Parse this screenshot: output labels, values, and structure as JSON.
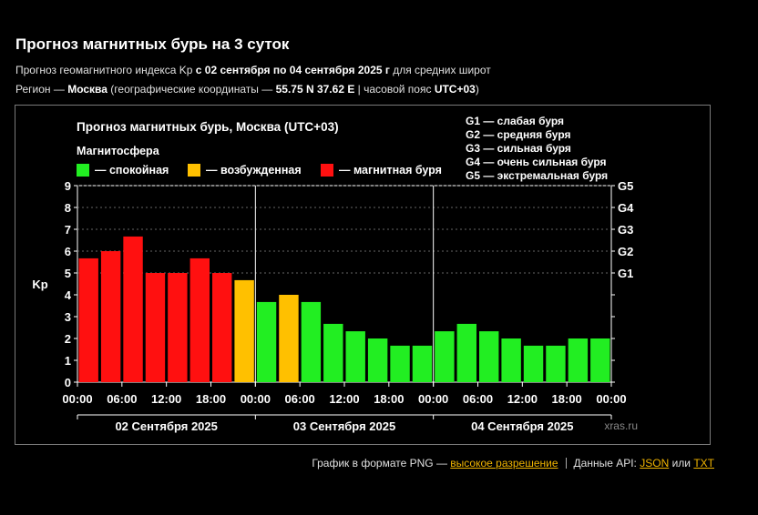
{
  "header": {
    "title": "Прогноз магнитных бурь на 3 суток",
    "line1_prefix": "Прогноз геомагнитного индекса Kp ",
    "line1_bold": "с 02 сентября по 04 сентября 2025 г",
    "line1_suffix": " для средних широт",
    "line2_prefix": "Регион — ",
    "line2_region": "Москва",
    "line2_mid": " (географические координаты — ",
    "line2_coords": "55.75 N 37.62 E",
    "line2_tz_prefix": " | часовой пояс ",
    "line2_tz": "UTC+03",
    "line2_suffix": ")"
  },
  "chart_data": {
    "type": "bar",
    "title": "Прогноз магнитных бурь, Москва (UTC+03)",
    "legend_title": "Магнитосфера",
    "legend": [
      {
        "label": "— спокойная",
        "color": "#22ee22"
      },
      {
        "label": "— возбужденная",
        "color": "#ffc000"
      },
      {
        "label": "— магнитная буря",
        "color": "#ff1010"
      }
    ],
    "storm_levels": [
      "G1 — слабая буря",
      "G2 — средняя буря",
      "G3 — сильная буря",
      "G4 — очень сильная буря",
      "G5 — экстремальная буря"
    ],
    "ylabel": "Kp",
    "ylim": [
      0,
      9
    ],
    "yticks": [
      "0",
      "1",
      "2",
      "3",
      "4",
      "5",
      "6",
      "7",
      "8",
      "9"
    ],
    "g_ticks": [
      {
        "label": "G1",
        "kp": 5
      },
      {
        "label": "G2",
        "kp": 6
      },
      {
        "label": "G3",
        "kp": 7
      },
      {
        "label": "G4",
        "kp": 8
      },
      {
        "label": "G5",
        "kp": 9
      }
    ],
    "xtick_labels": [
      "00:00",
      "06:00",
      "12:00",
      "18:00",
      "00:00",
      "06:00",
      "12:00",
      "18:00",
      "00:00",
      "06:00",
      "12:00",
      "18:00",
      "00:00"
    ],
    "days": [
      "02 Сентября 2025",
      "03 Сентября 2025",
      "04 Сентября 2025"
    ],
    "values": [
      5.67,
      6.0,
      6.67,
      5.0,
      5.0,
      5.67,
      5.0,
      4.67,
      3.67,
      4.0,
      3.67,
      2.67,
      2.33,
      2.0,
      1.67,
      1.67,
      2.33,
      2.67,
      2.33,
      2.0,
      1.67,
      1.67,
      2.0,
      2.0
    ],
    "colors": {
      "quiet": "#22ee22",
      "active": "#ffc000",
      "storm": "#ff1010"
    },
    "watermark": "xras.ru"
  },
  "footer": {
    "png_text": "График в формате PNG — ",
    "png_link": "высокое разрешение",
    "api_text": "Данные API: ",
    "json_link": "JSON",
    "or_text": " или ",
    "txt_link": "TXT"
  }
}
